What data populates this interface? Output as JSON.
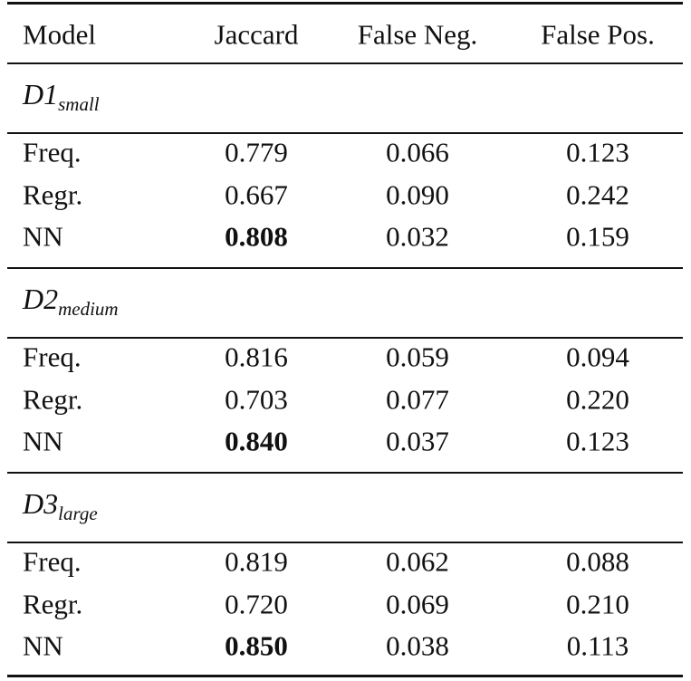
{
  "table": {
    "columns": [
      "Model",
      "Jaccard",
      "False Neg.",
      "False Pos."
    ],
    "groups": [
      {
        "name": "D1",
        "subscript": "small",
        "rows": [
          {
            "model": "Freq.",
            "values": [
              "0.779",
              "0.066",
              "0.123"
            ],
            "bold": [
              false,
              false,
              false
            ]
          },
          {
            "model": "Regr.",
            "values": [
              "0.667",
              "0.090",
              "0.242"
            ],
            "bold": [
              false,
              false,
              false
            ]
          },
          {
            "model": "NN",
            "values": [
              "0.808",
              "0.032",
              "0.159"
            ],
            "bold": [
              true,
              false,
              false
            ]
          }
        ]
      },
      {
        "name": "D2",
        "subscript": "medium",
        "rows": [
          {
            "model": "Freq.",
            "values": [
              "0.816",
              "0.059",
              "0.094"
            ],
            "bold": [
              false,
              false,
              false
            ]
          },
          {
            "model": "Regr.",
            "values": [
              "0.703",
              "0.077",
              "0.220"
            ],
            "bold": [
              false,
              false,
              false
            ]
          },
          {
            "model": "NN",
            "values": [
              "0.840",
              "0.037",
              "0.123"
            ],
            "bold": [
              true,
              false,
              false
            ]
          }
        ]
      },
      {
        "name": "D3",
        "subscript": "large",
        "rows": [
          {
            "model": "Freq.",
            "values": [
              "0.819",
              "0.062",
              "0.088"
            ],
            "bold": [
              false,
              false,
              false
            ]
          },
          {
            "model": "Regr.",
            "values": [
              "0.720",
              "0.069",
              "0.210"
            ],
            "bold": [
              false,
              false,
              false
            ]
          },
          {
            "model": "NN",
            "values": [
              "0.850",
              "0.038",
              "0.113"
            ],
            "bold": [
              true,
              false,
              false
            ]
          }
        ]
      }
    ]
  }
}
